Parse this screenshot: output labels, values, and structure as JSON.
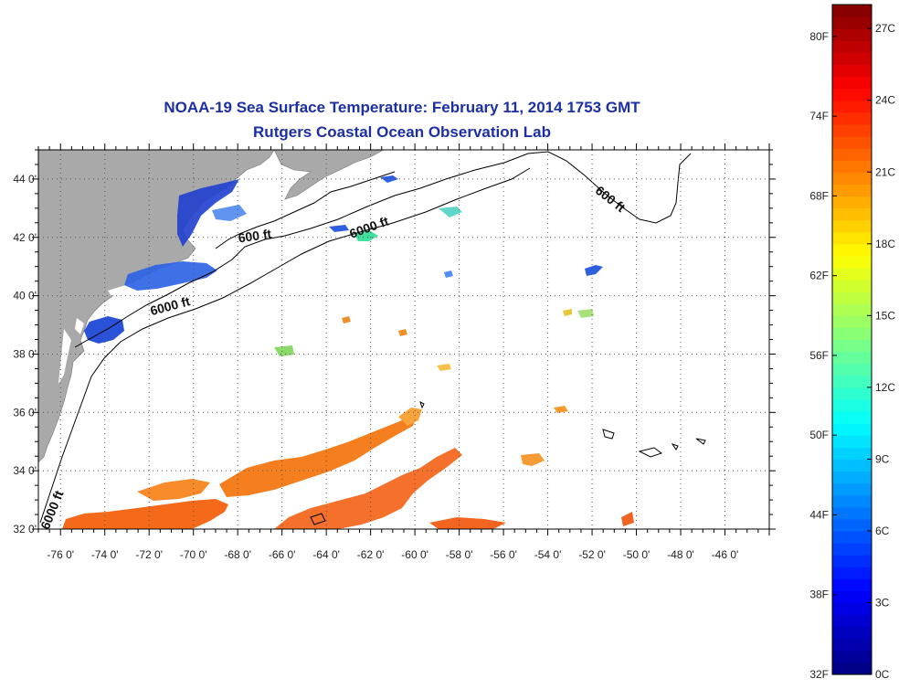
{
  "title": "NOAA-19 Sea Surface Temperature:  February 11, 2014 1753 GMT",
  "subtitle": "Rutgers Coastal Ocean Observation Lab",
  "map": {
    "lon_range": [
      -77,
      -44
    ],
    "lat_range": [
      32,
      45
    ],
    "lon_ticks": [
      -76,
      -74,
      -72,
      -70,
      -68,
      -66,
      -64,
      -62,
      -60,
      -58,
      -56,
      -54,
      -52,
      -50,
      -48,
      -46
    ],
    "lon_tick_labels": [
      "-76 0'",
      "-74 0'",
      "-72 0'",
      "-70 0'",
      "-68 0'",
      "-66 0'",
      "-64 0'",
      "-62 0'",
      "-60 0'",
      "-58 0'",
      "-56 0'",
      "-54 0'",
      "-52 0'",
      "-50 0'",
      "-48 0'",
      "-46 0'"
    ],
    "lat_ticks": [
      32,
      34,
      36,
      38,
      40,
      42,
      44
    ],
    "lat_tick_labels": [
      "32 0'",
      "34 0'",
      "36 0'",
      "38 0'",
      "40 0'",
      "42 0'",
      "44 0'"
    ],
    "grid": true,
    "land_color": "#a9a9a9",
    "contour_labels": [
      {
        "text": "600 ft",
        "lon": -67.2,
        "lat": 41.9,
        "angle": -8
      },
      {
        "text": "6000 ft",
        "lon": -62.0,
        "lat": 42.2,
        "angle": -20
      },
      {
        "text": "6000 ft",
        "lon": -71.0,
        "lat": 39.5,
        "angle": -15
      },
      {
        "text": "600 ft",
        "lon": -51.3,
        "lat": 43.2,
        "angle": 38
      },
      {
        "text": "6000 ft",
        "lon": -76.2,
        "lat": 32.6,
        "angle": -68
      }
    ]
  },
  "colorbar": {
    "celsius_range": [
      0,
      28
    ],
    "celsius_labels": [
      "0C",
      "3C",
      "6C",
      "9C",
      "12C",
      "15C",
      "18C",
      "21C",
      "24C",
      "27C"
    ],
    "celsius_values": [
      0,
      3,
      6,
      9,
      12,
      15,
      18,
      21,
      24,
      27
    ],
    "fahrenheit_labels": [
      "32F",
      "38F",
      "44F",
      "50F",
      "56F",
      "62F",
      "68F",
      "74F",
      "80F"
    ],
    "fahrenheit_values": [
      32,
      38,
      44,
      50,
      56,
      62,
      68,
      74,
      80
    ]
  }
}
